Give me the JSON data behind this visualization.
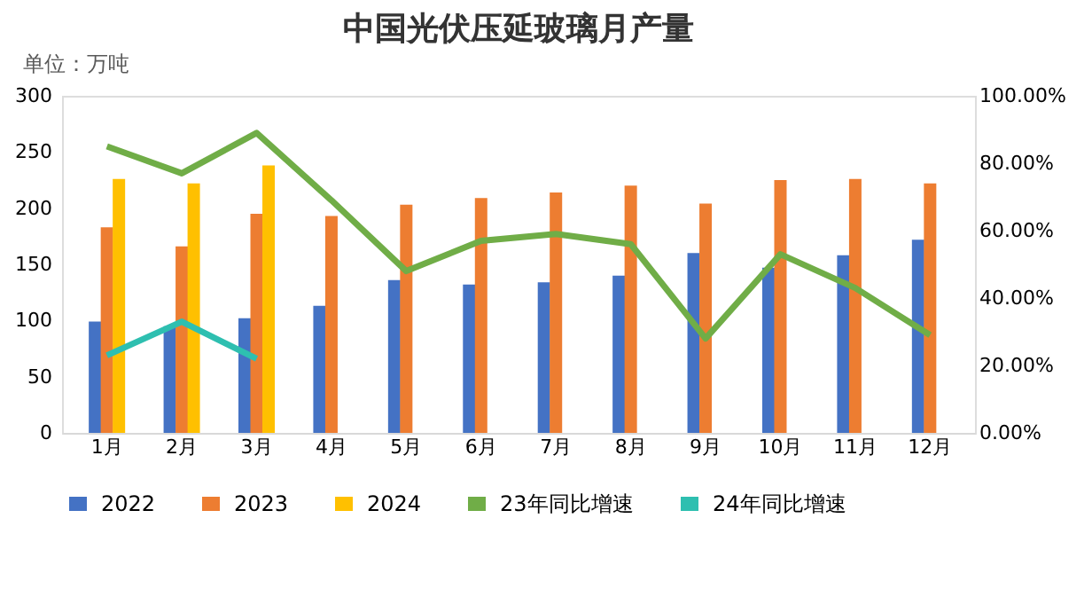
{
  "chart_data": {
    "type": "bar",
    "title": "中国光伏压延玻璃月产量",
    "annotations": [
      "单位：万吨"
    ],
    "categories": [
      "1月",
      "2月",
      "3月",
      "4月",
      "5月",
      "6月",
      "7月",
      "8月",
      "9月",
      "10月",
      "11月",
      "12月"
    ],
    "series": [
      {
        "name": "2022",
        "color": "#4472c4",
        "values": [
          99,
          95,
          102,
          113,
          136,
          132,
          134,
          140,
          160,
          147,
          158,
          172
        ]
      },
      {
        "name": "2023",
        "color": "#ed7d31",
        "values": [
          183,
          166,
          195,
          193,
          203,
          209,
          214,
          220,
          204,
          225,
          226,
          222
        ]
      },
      {
        "name": "2024",
        "color": "#ffc000",
        "values": [
          226,
          222,
          238,
          null,
          null,
          null,
          null,
          null,
          null,
          null,
          null,
          null
        ]
      },
      {
        "name": "23年同比增速",
        "type": "line",
        "axis": "y2",
        "color": "#70ad47",
        "values": [
          85,
          77,
          89,
          69,
          48,
          57,
          59,
          56,
          28,
          53,
          43,
          29
        ]
      },
      {
        "name": "24年同比增速",
        "type": "line",
        "axis": "y2",
        "color": "#2ebfb0",
        "values": [
          23,
          33,
          22,
          null,
          null,
          null,
          null,
          null,
          null,
          null,
          null,
          null
        ]
      }
    ],
    "ylim": [
      0,
      300
    ],
    "yticks": [
      0,
      50,
      100,
      150,
      200,
      250,
      300
    ],
    "y2lim": [
      0,
      100
    ],
    "y2ticks": [
      {
        "value": 0,
        "label": "0.00%"
      },
      {
        "value": 20,
        "label": "20.00%"
      },
      {
        "value": 40,
        "label": "40.00%"
      },
      {
        "value": 60,
        "label": "60.00%"
      },
      {
        "value": 80,
        "label": "80.00%"
      },
      {
        "value": 100,
        "label": "100.00%"
      }
    ],
    "legend": "bottom",
    "grid": false
  }
}
